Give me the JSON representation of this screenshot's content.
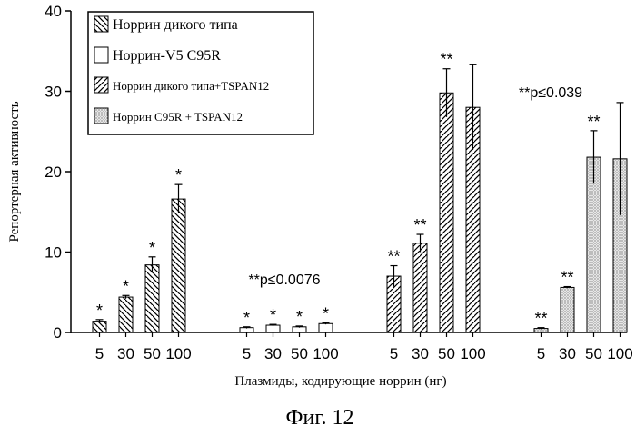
{
  "chart_data": {
    "type": "bar",
    "ylabel": "Репортерная активность",
    "xlabel": "Плазмиды, кодирующие норрин (нг)",
    "caption": "Фиг. 12",
    "ylim": [
      0,
      40
    ],
    "yticks": [
      "0",
      "10",
      "20",
      "30",
      "40"
    ],
    "grid": false,
    "legend_position": "top-left",
    "legend": [
      {
        "label": "Норрин дикого типа",
        "pattern": "hatch-back"
      },
      {
        "label": "Норрин-V5 C95R",
        "pattern": "empty"
      },
      {
        "label": "Норрин дикого типа+TSPAN12",
        "pattern": "hatch-forward"
      },
      {
        "label": "Норрин C95R  + TSPAN12",
        "pattern": "dots"
      }
    ],
    "groups": [
      {
        "pattern": "hatch-back",
        "categories": [
          "5",
          "30",
          "50",
          "100"
        ],
        "values": [
          1.4,
          4.4,
          8.4,
          16.6
        ],
        "errors": [
          0.2,
          0.2,
          1.0,
          1.8
        ],
        "labels": [
          "*",
          "*",
          "*",
          "*"
        ]
      },
      {
        "pattern": "empty",
        "categories": [
          "5",
          "30",
          "50",
          "100"
        ],
        "values": [
          0.6,
          0.9,
          0.7,
          1.1
        ],
        "errors": [
          0.1,
          0.1,
          0.1,
          0.1
        ],
        "labels": [
          "*",
          "*",
          "*",
          "*"
        ],
        "annotation": "**p≤0.0076"
      },
      {
        "pattern": "hatch-forward",
        "categories": [
          "5",
          "30",
          "50",
          "100"
        ],
        "values": [
          7.0,
          11.1,
          29.8,
          28.0
        ],
        "errors": [
          1.3,
          1.1,
          3.0,
          5.3
        ],
        "labels": [
          "**",
          "**",
          "**",
          ""
        ]
      },
      {
        "pattern": "dots",
        "categories": [
          "5",
          "30",
          "50",
          "100"
        ],
        "values": [
          0.5,
          5.6,
          21.8,
          21.6
        ],
        "errors": [
          0.1,
          0.1,
          3.3,
          7.0
        ],
        "labels": [
          "**",
          "**",
          "**",
          ""
        ],
        "annotation": "**p≤0.039"
      }
    ]
  }
}
